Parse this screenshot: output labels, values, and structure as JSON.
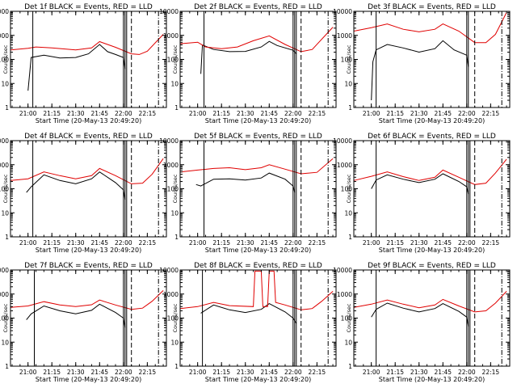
{
  "colors": {
    "events": "#000000",
    "lld": "#e00000",
    "axes": "#000000",
    "background": "#ffffff"
  },
  "chart_data": [
    {
      "type": "line",
      "title": "Det 1f BLACK = Events, RED = LLD",
      "xlabel": "Start Time (20-May-13 20:49:20)",
      "ylabel": "Counts/sec",
      "yscale": "log",
      "ylim": [
        1,
        10000
      ],
      "xlim": [
        "20:49",
        "22:27"
      ],
      "xtick_labels": [
        "21:00",
        "21:15",
        "21:30",
        "21:45",
        "22:00",
        "22:15"
      ],
      "ytick_labels": [
        "1",
        "10",
        "100",
        "1000",
        "10000"
      ],
      "series": [
        {
          "name": "Events",
          "x": [
            "21:00",
            "21:02",
            "21:10",
            "21:20",
            "21:30",
            "21:38",
            "21:45",
            "21:50",
            "21:55",
            "22:00",
            "22:01"
          ],
          "values": [
            5,
            120,
            150,
            115,
            120,
            170,
            420,
            210,
            160,
            120,
            40
          ]
        },
        {
          "name": "LLD",
          "x": [
            "20:49",
            "21:00",
            "21:05",
            "21:15",
            "21:30",
            "21:40",
            "21:45",
            "21:55",
            "22:05",
            "22:10",
            "22:15",
            "22:25"
          ],
          "values": [
            250,
            290,
            330,
            300,
            250,
            300,
            550,
            320,
            170,
            160,
            220,
            1100
          ]
        }
      ],
      "vlines_solid": [
        "21:03",
        "22:00",
        "22:01",
        "22:02"
      ],
      "vlines_dashed": [
        "22:05",
        "22:22"
      ]
    },
    {
      "type": "line",
      "title": "Det 2f BLACK = Events, RED = LLD",
      "xlabel": "Start Time (20-May-13 20:49:20)",
      "ylabel": "Counts/sec",
      "yscale": "log",
      "ylim": [
        1,
        10000
      ],
      "xlim": [
        "20:49",
        "22:27"
      ],
      "xtick_labels": [
        "21:00",
        "21:15",
        "21:30",
        "21:45",
        "22:00",
        "22:15"
      ],
      "ytick_labels": [
        "1",
        "10",
        "100",
        "1000",
        "10000"
      ],
      "series": [
        {
          "name": "Events",
          "x": [
            "21:02",
            "21:03",
            "21:10",
            "21:20",
            "21:30",
            "21:40",
            "21:45",
            "21:50",
            "22:00",
            "22:02"
          ],
          "values": [
            25,
            400,
            260,
            210,
            215,
            330,
            560,
            380,
            240,
            170
          ]
        },
        {
          "name": "LLD",
          "x": [
            "20:49",
            "21:00",
            "21:05",
            "21:15",
            "21:25",
            "21:35",
            "21:45",
            "21:55",
            "22:05",
            "22:12",
            "22:25"
          ],
          "values": [
            450,
            520,
            330,
            280,
            330,
            600,
            950,
            420,
            210,
            260,
            2200
          ]
        }
      ],
      "vlines_solid": [
        "21:04",
        "22:00",
        "22:01",
        "22:02"
      ],
      "vlines_dashed": [
        "22:05",
        "22:22"
      ]
    },
    {
      "type": "line",
      "title": "Det 3f BLACK = Events, RED = LLD",
      "xlabel": "Start Time (20-May-13 20:49:20)",
      "ylabel": "Counts/sec",
      "yscale": "log",
      "ylim": [
        1,
        10000
      ],
      "xlim": [
        "20:49",
        "22:27"
      ],
      "xtick_labels": [
        "21:00",
        "21:15",
        "21:30",
        "21:45",
        "22:00",
        "22:15"
      ],
      "ytick_labels": [
        "1",
        "10",
        "100",
        "1000",
        "10000"
      ],
      "series": [
        {
          "name": "Events",
          "x": [
            "21:00",
            "21:01",
            "21:03",
            "21:10",
            "21:20",
            "21:30",
            "21:40",
            "21:45",
            "21:52",
            "22:00",
            "22:01"
          ],
          "values": [
            2,
            80,
            250,
            420,
            300,
            200,
            280,
            600,
            250,
            150,
            50
          ]
        },
        {
          "name": "LLD",
          "x": [
            "20:49",
            "21:00",
            "21:10",
            "21:20",
            "21:30",
            "21:40",
            "21:45",
            "21:55",
            "22:05",
            "22:12",
            "22:18",
            "22:25"
          ],
          "values": [
            1500,
            2100,
            3000,
            1800,
            1400,
            1800,
            3000,
            1500,
            500,
            500,
            1100,
            9000
          ]
        }
      ],
      "vlines_solid": [
        "21:03",
        "22:00",
        "22:01"
      ],
      "vlines_dashed": [
        "22:05",
        "22:22"
      ]
    },
    {
      "type": "line",
      "title": "Det 4f BLACK = Events, RED = LLD",
      "xlabel": "Start Time (20-May-13 20:49:20)",
      "ylabel": "Counts/sec",
      "yscale": "log",
      "ylim": [
        1,
        10000
      ],
      "xlim": [
        "20:49",
        "22:27"
      ],
      "xtick_labels": [
        "21:00",
        "21:15",
        "21:30",
        "21:45",
        "22:00",
        "22:15"
      ],
      "ytick_labels": [
        "1",
        "10",
        "100",
        "1000",
        "10000"
      ],
      "series": [
        {
          "name": "Events",
          "x": [
            "20:59",
            "21:02",
            "21:10",
            "21:20",
            "21:30",
            "21:40",
            "21:45",
            "21:55",
            "22:00",
            "22:01"
          ],
          "values": [
            70,
            120,
            380,
            220,
            160,
            260,
            500,
            180,
            90,
            35
          ]
        },
        {
          "name": "LLD",
          "x": [
            "20:49",
            "21:00",
            "21:10",
            "21:20",
            "21:30",
            "21:40",
            "21:45",
            "21:55",
            "22:05",
            "22:12",
            "22:18",
            "22:25"
          ],
          "values": [
            220,
            260,
            500,
            350,
            260,
            350,
            700,
            350,
            160,
            170,
            400,
            1800
          ]
        }
      ],
      "vlines_solid": [
        "21:03",
        "22:00",
        "22:01",
        "22:02"
      ],
      "vlines_dashed": [
        "22:05",
        "22:22"
      ]
    },
    {
      "type": "line",
      "title": "Det 5f BLACK = Events, RED = LLD",
      "xlabel": "Start Time (20-May-13 20:49:20)",
      "ylabel": "Counts/sec",
      "yscale": "log",
      "ylim": [
        1,
        10000
      ],
      "xlim": [
        "20:49",
        "22:27"
      ],
      "xtick_labels": [
        "21:00",
        "21:15",
        "21:30",
        "21:45",
        "22:00",
        "22:15"
      ],
      "ytick_labels": [
        "1",
        "10",
        "100",
        "1000",
        "10000"
      ],
      "series": [
        {
          "name": "Events",
          "x": [
            "20:59",
            "21:02",
            "21:10",
            "21:20",
            "21:30",
            "21:40",
            "21:45",
            "21:55",
            "22:00",
            "22:01"
          ],
          "values": [
            150,
            130,
            250,
            260,
            230,
            280,
            450,
            250,
            130,
            70
          ]
        },
        {
          "name": "LLD",
          "x": [
            "20:49",
            "21:00",
            "21:10",
            "21:20",
            "21:30",
            "21:40",
            "21:45",
            "21:55",
            "22:05",
            "22:15",
            "22:25"
          ],
          "values": [
            500,
            600,
            700,
            750,
            620,
            750,
            1000,
            650,
            420,
            480,
            1800
          ]
        }
      ],
      "vlines_solid": [
        "21:04",
        "22:00",
        "22:01",
        "22:02"
      ],
      "vlines_dashed": [
        "22:05",
        "22:22"
      ]
    },
    {
      "type": "line",
      "title": "Det 6f BLACK = Events, RED = LLD",
      "xlabel": "Start Time (20-May-13 20:49:20)",
      "ylabel": "Counts/sec",
      "yscale": "log",
      "ylim": [
        1,
        10000
      ],
      "xlim": [
        "20:49",
        "22:27"
      ],
      "xtick_labels": [
        "21:00",
        "21:15",
        "21:30",
        "21:45",
        "22:00",
        "22:15"
      ],
      "ytick_labels": [
        "1",
        "10",
        "100",
        "1000",
        "10000"
      ],
      "series": [
        {
          "name": "Events",
          "x": [
            "21:00",
            "21:03",
            "21:10",
            "21:20",
            "21:30",
            "21:40",
            "21:45",
            "21:55",
            "22:00",
            "22:01"
          ],
          "values": [
            100,
            230,
            380,
            250,
            180,
            250,
            420,
            200,
            120,
            60
          ]
        },
        {
          "name": "LLD",
          "x": [
            "20:49",
            "21:00",
            "21:10",
            "21:20",
            "21:30",
            "21:40",
            "21:45",
            "21:55",
            "22:05",
            "22:12",
            "22:18",
            "22:25"
          ],
          "values": [
            220,
            330,
            500,
            320,
            220,
            300,
            600,
            300,
            150,
            170,
            450,
            1700
          ]
        }
      ],
      "vlines_solid": [
        "21:03",
        "22:00",
        "22:01",
        "22:02"
      ],
      "vlines_dashed": [
        "22:05",
        "22:22"
      ]
    },
    {
      "type": "line",
      "title": "Det 7f BLACK = Events, RED = LLD",
      "xlabel": "Start Time (20-May-13 20:49:20)",
      "ylabel": "Counts/sec",
      "yscale": "log",
      "ylim": [
        1,
        10000
      ],
      "xlim": [
        "20:49",
        "22:27"
      ],
      "xtick_labels": [
        "21:00",
        "21:15",
        "21:30",
        "21:45",
        "22:00",
        "22:15"
      ],
      "ytick_labels": [
        "1",
        "10",
        "100",
        "1000",
        "10000"
      ],
      "series": [
        {
          "name": "Events",
          "x": [
            "20:59",
            "21:02",
            "21:10",
            "21:20",
            "21:30",
            "21:40",
            "21:45",
            "21:55",
            "22:00",
            "22:01"
          ],
          "values": [
            85,
            150,
            320,
            200,
            150,
            210,
            380,
            170,
            100,
            40
          ]
        },
        {
          "name": "LLD",
          "x": [
            "20:49",
            "21:00",
            "21:10",
            "21:20",
            "21:30",
            "21:40",
            "21:45",
            "21:55",
            "22:05",
            "22:12",
            "22:18",
            "22:25"
          ],
          "values": [
            280,
            320,
            480,
            350,
            300,
            360,
            560,
            350,
            230,
            260,
            500,
            1400
          ]
        }
      ],
      "vlines_solid": [
        "21:04",
        "22:00",
        "22:01",
        "22:02"
      ],
      "vlines_dashed": [
        "22:05",
        "22:22"
      ]
    },
    {
      "type": "line",
      "title": "Det 8f BLACK = Events, RED = LLD",
      "xlabel": "Start Time (20-May-13 20:49:20)",
      "ylabel": "Counts/sec",
      "yscale": "log",
      "ylim": [
        1,
        10000
      ],
      "xlim": [
        "20:49",
        "22:27"
      ],
      "xtick_labels": [
        "21:00",
        "21:15",
        "21:30",
        "21:45",
        "22:00",
        "22:15"
      ],
      "ytick_labels": [
        "1",
        "10",
        "100",
        "1000",
        "10000"
      ],
      "series": [
        {
          "name": "Events",
          "x": [
            "21:02",
            "21:10",
            "21:20",
            "21:30",
            "21:40",
            "21:45",
            "21:55",
            "22:00",
            "22:02"
          ],
          "values": [
            160,
            350,
            220,
            170,
            230,
            400,
            180,
            100,
            60
          ]
        },
        {
          "name": "LLD",
          "x": [
            "20:49",
            "21:00",
            "21:10",
            "21:20",
            "21:35",
            "21:36",
            "21:40",
            "21:41",
            "21:44",
            "21:45",
            "21:48",
            "21:49",
            "21:55",
            "22:05",
            "22:12",
            "22:18",
            "22:25"
          ],
          "values": [
            250,
            300,
            450,
            330,
            300,
            9000,
            9000,
            300,
            300,
            9000,
            9000,
            450,
            350,
            220,
            250,
            500,
            1300
          ]
        }
      ],
      "vlines_solid": [
        "21:03",
        "22:00",
        "22:01",
        "22:02"
      ],
      "vlines_dashed": [
        "22:05",
        "22:22"
      ]
    },
    {
      "type": "line",
      "title": "Det 9f BLACK = Events, RED = LLD",
      "xlabel": "Start Time (20-May-13 20:49:20)",
      "ylabel": "Counts/sec",
      "yscale": "log",
      "ylim": [
        1,
        10000
      ],
      "xlim": [
        "20:49",
        "22:27"
      ],
      "xtick_labels": [
        "21:00",
        "21:15",
        "21:30",
        "21:45",
        "22:00",
        "22:15"
      ],
      "ytick_labels": [
        "1",
        "10",
        "100",
        "1000",
        "10000"
      ],
      "series": [
        {
          "name": "Events",
          "x": [
            "21:00",
            "21:03",
            "21:10",
            "21:20",
            "21:30",
            "21:40",
            "21:45",
            "21:55",
            "22:00",
            "22:01"
          ],
          "values": [
            110,
            230,
            420,
            260,
            180,
            250,
            400,
            190,
            110,
            45
          ]
        },
        {
          "name": "LLD",
          "x": [
            "20:49",
            "21:00",
            "21:10",
            "21:20",
            "21:30",
            "21:40",
            "21:45",
            "21:55",
            "22:05",
            "22:12",
            "22:18",
            "22:25"
          ],
          "values": [
            280,
            380,
            560,
            380,
            270,
            350,
            600,
            320,
            180,
            200,
            420,
            1300
          ]
        }
      ],
      "vlines_solid": [
        "21:03",
        "22:00",
        "22:01",
        "22:02"
      ],
      "vlines_dashed": [
        "22:05",
        "22:22"
      ]
    }
  ]
}
